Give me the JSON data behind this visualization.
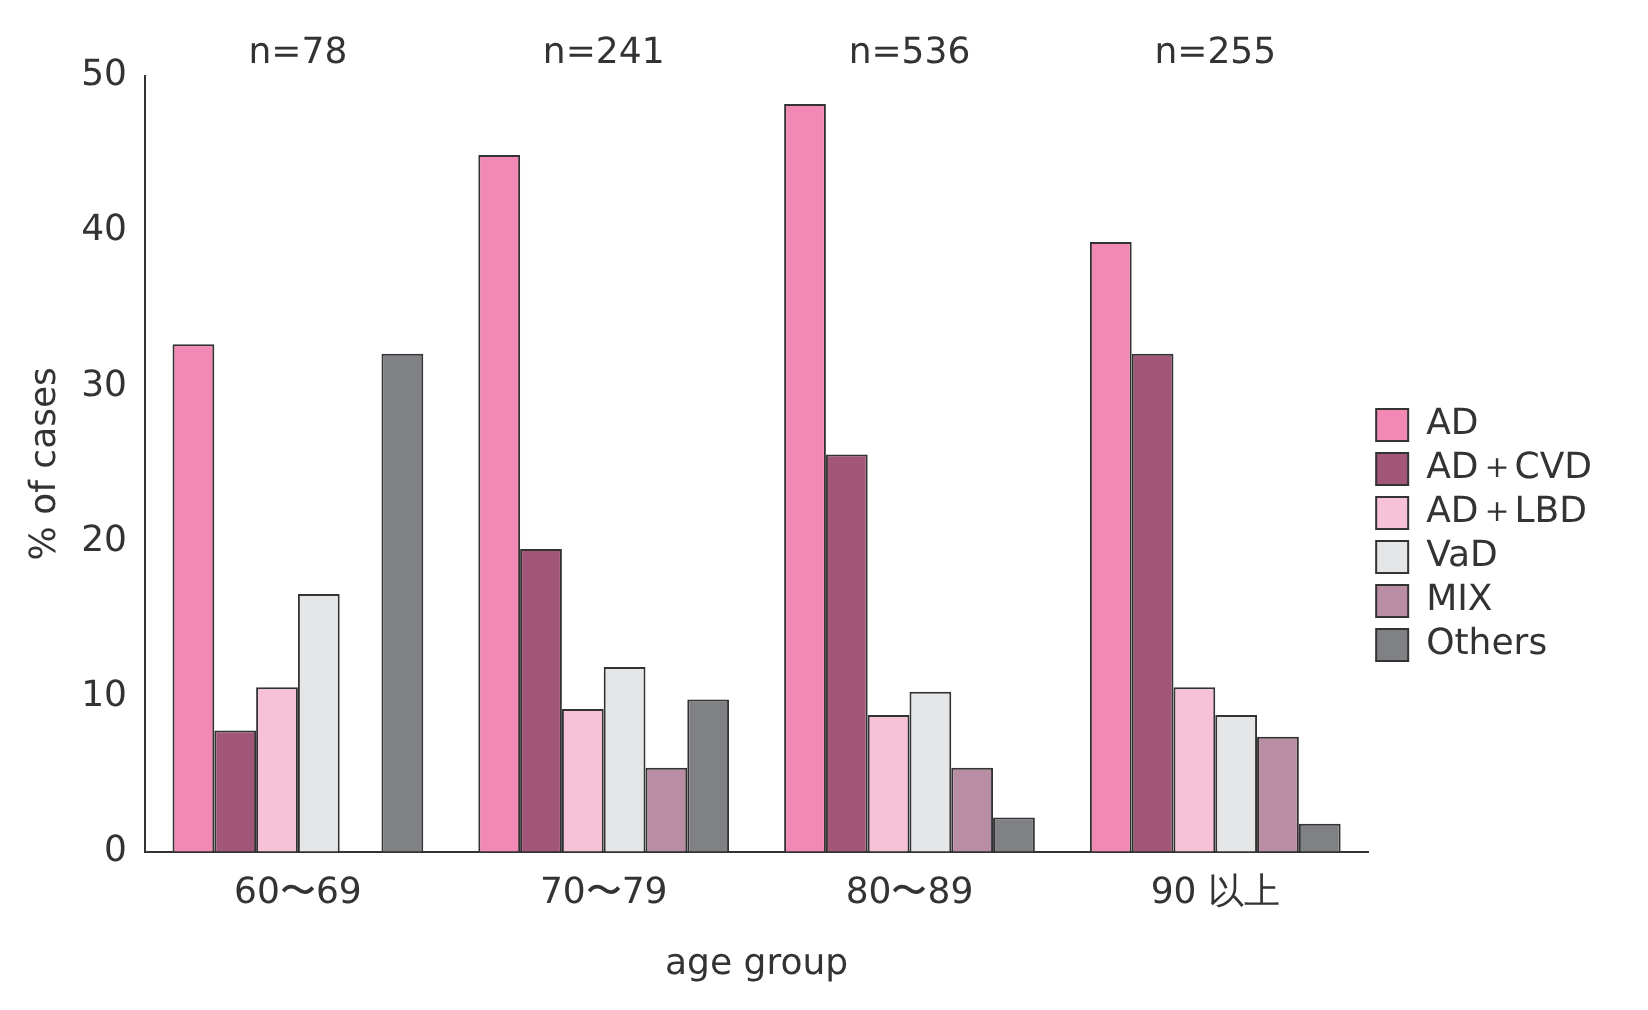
{
  "chart_data": {
    "type": "bar",
    "xlabel": "age group",
    "ylabel": "% of cases",
    "categories": [
      "60〜69",
      "70〜79",
      "80〜89",
      "90 以上"
    ],
    "series": [
      {
        "name": "AD",
        "color": "#f288b4",
        "values": [
          32.7,
          44.9,
          48.2,
          39.3
        ]
      },
      {
        "name": "AD＋CVD",
        "color": "#a25678",
        "values": [
          7.8,
          19.5,
          25.6,
          32.1
        ]
      },
      {
        "name": "AD＋LBD",
        "color": "#f7c1d8",
        "values": [
          10.6,
          9.2,
          8.8,
          10.6
        ]
      },
      {
        "name": "VaD",
        "color": "#e5e6e8",
        "values": [
          16.6,
          11.9,
          10.3,
          8.8
        ]
      },
      {
        "name": "MIX",
        "color": "#b98da4",
        "values": [
          0,
          5.4,
          5.4,
          7.4
        ]
      },
      {
        "name": "Others",
        "color": "#808185",
        "values": [
          32.1,
          9.8,
          2.2,
          1.8
        ]
      }
    ],
    "ylim": [
      0,
      50
    ],
    "yticks": [
      0,
      10,
      20,
      30,
      40,
      50
    ],
    "grid": false,
    "legend": "right",
    "annotations": [
      "n=78",
      "n=241",
      "n=536",
      "n=255"
    ]
  }
}
